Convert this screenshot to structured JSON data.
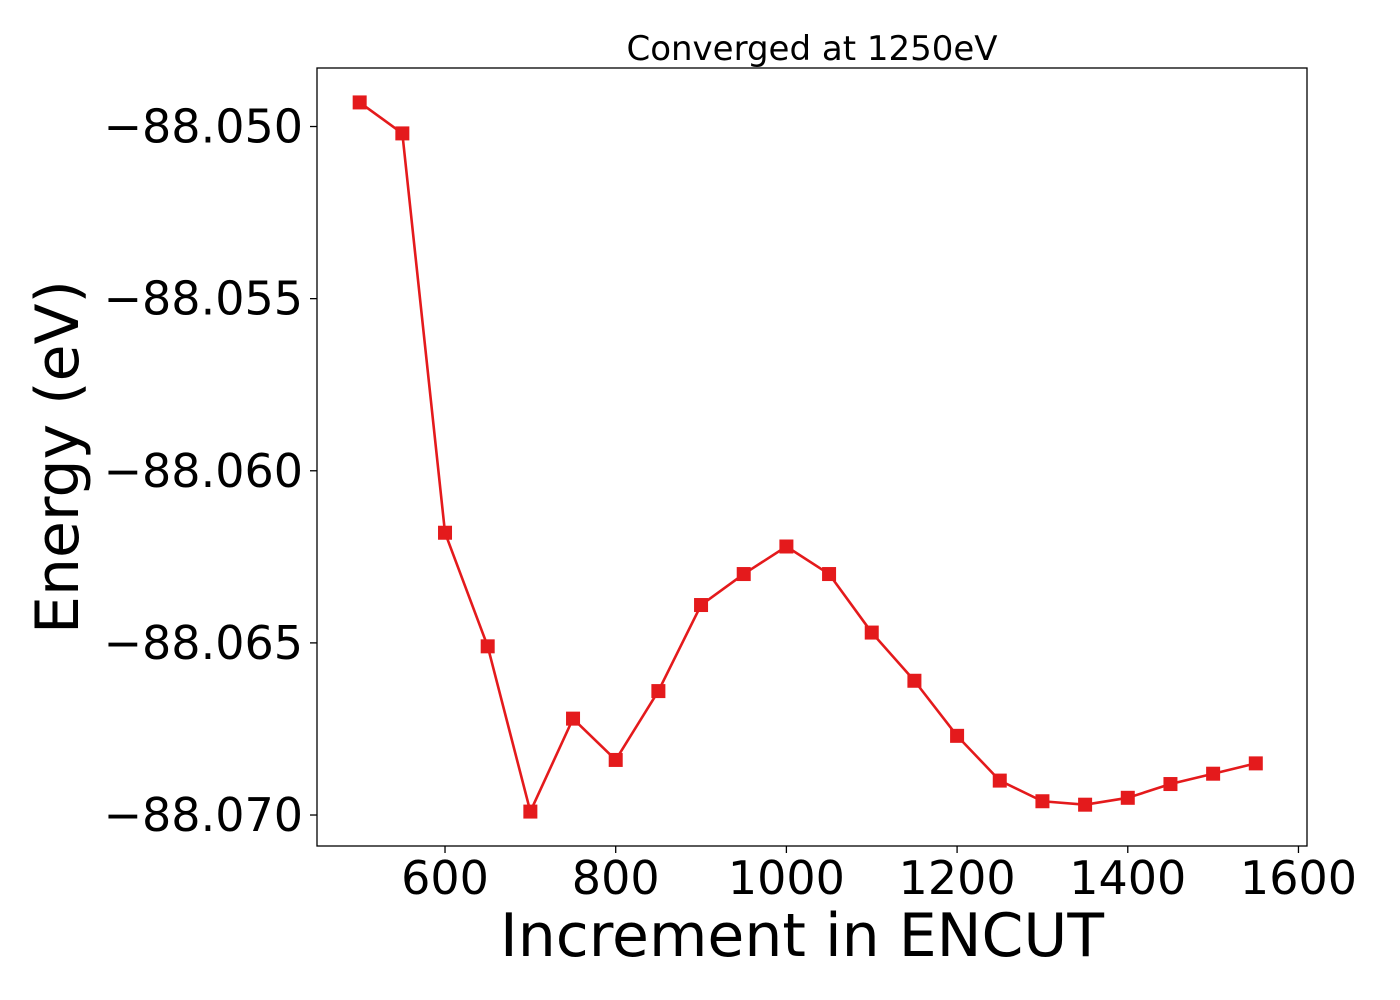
{
  "chart_data": {
    "type": "line",
    "title": "Converged at 1250eV",
    "xlabel": "Increment in ENCUT",
    "ylabel": "Energy (eV)",
    "xlim": [
      450,
      1610
    ],
    "ylim": [
      -88.0709,
      -88.0483
    ],
    "x_ticks": [
      600,
      800,
      1000,
      1200,
      1400,
      1600
    ],
    "y_ticks": [
      -88.05,
      -88.055,
      -88.06,
      -88.065,
      -88.07
    ],
    "y_tick_labels": [
      "−88.050",
      "−88.055",
      "−88.060",
      "−88.065",
      "−88.070"
    ],
    "grid": false,
    "series": [
      {
        "color": "#e41a1c",
        "marker": "square",
        "x": [
          500,
          550,
          600,
          650,
          700,
          750,
          800,
          850,
          900,
          950,
          1000,
          1050,
          1100,
          1150,
          1200,
          1250,
          1300,
          1350,
          1400,
          1450,
          1500,
          1550
        ],
        "y": [
          -88.0493,
          -88.0502,
          -88.0618,
          -88.0651,
          -88.0699,
          -88.0672,
          -88.0684,
          -88.0664,
          -88.0639,
          -88.063,
          -88.0622,
          -88.063,
          -88.0647,
          -88.0661,
          -88.0677,
          -88.069,
          -88.0696,
          -88.0697,
          -88.0695,
          -88.0691,
          -88.0688,
          -88.0685
        ]
      }
    ]
  }
}
